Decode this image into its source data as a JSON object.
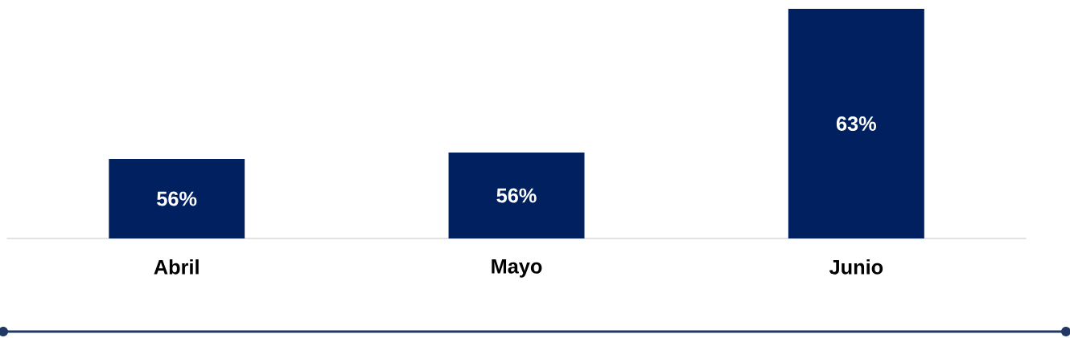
{
  "chart_data": {
    "type": "bar",
    "categories": [
      "Abril",
      "Mayo",
      "Junio"
    ],
    "values": [
      56,
      56.3,
      63
    ],
    "value_labels": [
      "56%",
      "56%",
      "63%"
    ],
    "color": "#002060",
    "ylim": [
      52.3,
      63
    ]
  }
}
